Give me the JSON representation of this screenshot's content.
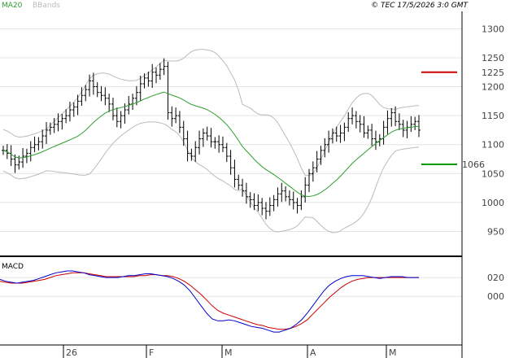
{
  "header": {
    "ma_label": "MA20",
    "bands_label": "BBands",
    "copyright": "© TEC 17/5/2026 3:0 GMT",
    "ma_color": "#2e9e2e",
    "bands_color": "#bbbbbb"
  },
  "price_panel": {
    "y_ticks": [
      "1300",
      "1250",
      "1200",
      "1150",
      "1100",
      "1050",
      "1000",
      "950"
    ],
    "resistance": {
      "value": 1225,
      "label": "1225",
      "color": "#cc0000"
    },
    "support": {
      "value": 1066,
      "label": "1066",
      "color": "#009900"
    }
  },
  "macd_panel": {
    "label": "MACD",
    "y_ticks": [
      "020",
      "000"
    ],
    "macd_color": "#0000cc",
    "signal_color": "#cc0000"
  },
  "x_ticks": [
    "26",
    "F",
    "M",
    "A",
    "M"
  ],
  "chart_data": {
    "type": "line",
    "price_ylim": [
      910,
      1330
    ],
    "price_ticks": [
      1300,
      1250,
      1200,
      1150,
      1100,
      1050,
      1000,
      950
    ],
    "price_closes": [
      1090,
      1085,
      1075,
      1065,
      1070,
      1080,
      1085,
      1095,
      1100,
      1105,
      1115,
      1125,
      1130,
      1135,
      1140,
      1145,
      1150,
      1160,
      1165,
      1175,
      1185,
      1195,
      1210,
      1200,
      1190,
      1185,
      1180,
      1170,
      1150,
      1140,
      1150,
      1160,
      1170,
      1180,
      1190,
      1205,
      1215,
      1210,
      1225,
      1220,
      1230,
      1235,
      1155,
      1145,
      1150,
      1130,
      1110,
      1085,
      1080,
      1095,
      1110,
      1120,
      1115,
      1105,
      1105,
      1100,
      1095,
      1080,
      1060,
      1040,
      1030,
      1020,
      1010,
      1005,
      995,
      1000,
      990,
      985,
      995,
      1005,
      1015,
      1020,
      1010,
      1005,
      1000,
      995,
      1010,
      1030,
      1050,
      1060,
      1075,
      1090,
      1100,
      1110,
      1120,
      1115,
      1120,
      1130,
      1145,
      1150,
      1140,
      1135,
      1120,
      1125,
      1110,
      1105,
      1110,
      1130,
      1145,
      1155,
      1140,
      1135,
      1125,
      1130,
      1135,
      1140,
      1125
    ],
    "ma20_ylim_same_as_price": true,
    "macd_ylim": [
      -50,
      40
    ],
    "macd_ticks": [
      20,
      0
    ],
    "macd": [
      18,
      16,
      15,
      14,
      15,
      16,
      17,
      19,
      21,
      23,
      25,
      26,
      27,
      27,
      26,
      25,
      23,
      22,
      21,
      20,
      20,
      20,
      21,
      22,
      22,
      23,
      24,
      24,
      23,
      22,
      21,
      19,
      16,
      12,
      6,
      -2,
      -10,
      -18,
      -24,
      -26,
      -26,
      -25,
      -26,
      -28,
      -30,
      -32,
      -33,
      -34,
      -36,
      -38,
      -38,
      -36,
      -34,
      -30,
      -25,
      -18,
      -10,
      -2,
      6,
      12,
      16,
      19,
      21,
      22,
      22,
      22,
      21,
      20,
      19,
      20,
      21,
      21,
      21,
      20,
      20,
      20
    ],
    "signal": [
      16,
      15,
      14,
      14,
      14,
      15,
      16,
      17,
      18,
      20,
      22,
      23,
      24,
      25,
      25,
      25,
      24,
      23,
      22,
      21,
      21,
      21,
      21,
      21,
      21,
      22,
      22,
      23,
      23,
      22,
      22,
      21,
      19,
      16,
      12,
      7,
      2,
      -4,
      -10,
      -15,
      -18,
      -20,
      -22,
      -24,
      -26,
      -28,
      -30,
      -31,
      -33,
      -34,
      -35,
      -35,
      -34,
      -32,
      -29,
      -25,
      -19,
      -13,
      -7,
      -1,
      4,
      9,
      13,
      16,
      18,
      19,
      20,
      20,
      20,
      20,
      20,
      20,
      20,
      20,
      20,
      20
    ]
  }
}
